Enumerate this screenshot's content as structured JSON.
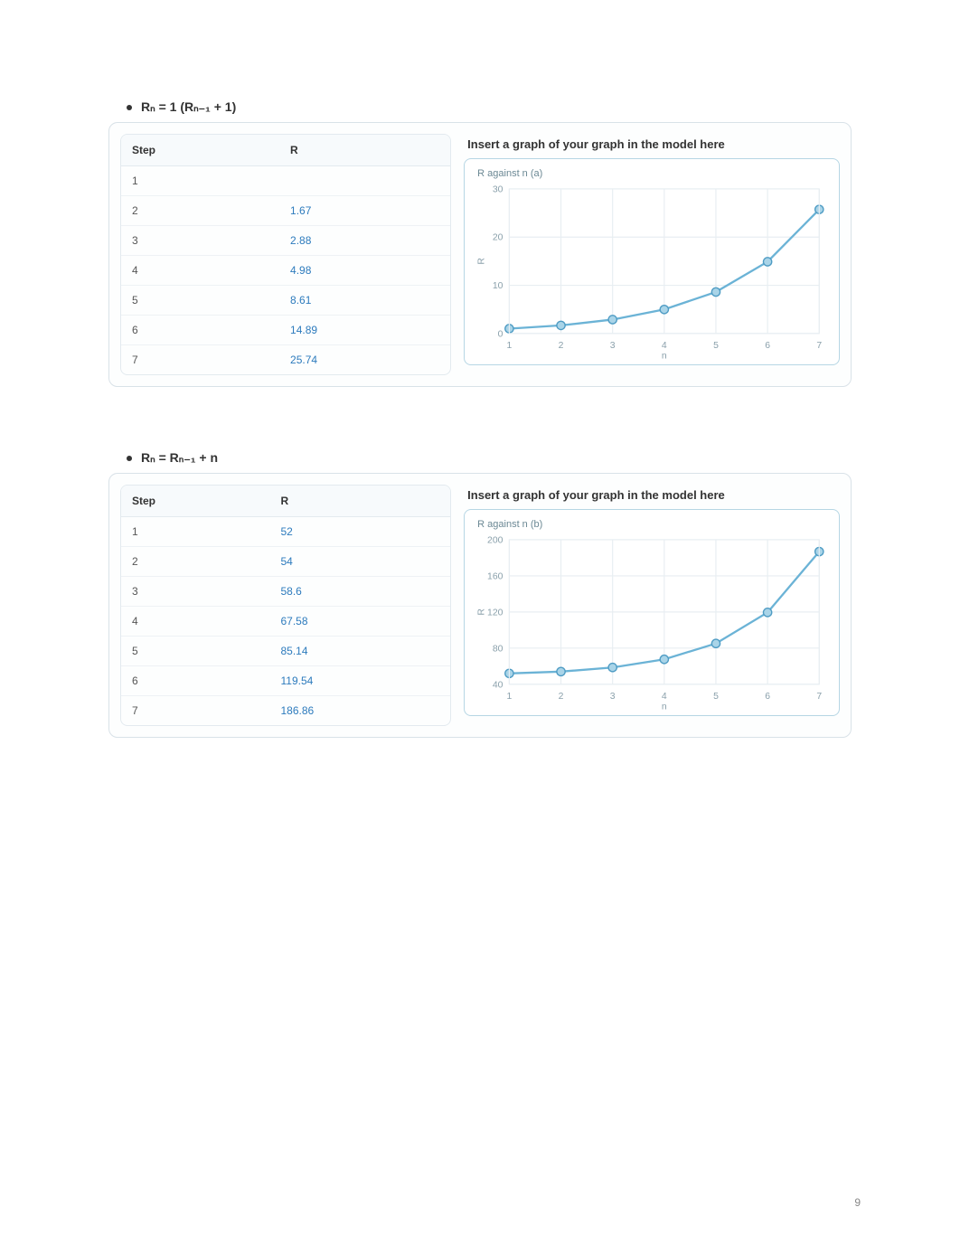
{
  "page_number": "9",
  "colors": {
    "panel_border": "#d9e2e8",
    "chart_border": "#b6d6e4",
    "line": "#6bb3d6",
    "marker_fill": "#a9d4e8",
    "marker_stroke": "#4f9cc4",
    "grid": "#e8eef2",
    "axis_text": "#8aa0ab",
    "link": "#2d7bbd"
  },
  "sections": [
    {
      "heading": "Rₙ = 1 (Rₙ₋₁ + 1)",
      "table": {
        "headers": [
          "Step",
          "R"
        ],
        "rows": [
          [
            "1",
            ""
          ],
          [
            "2",
            "1.67"
          ],
          [
            "3",
            "2.88"
          ],
          [
            "4",
            "4.98"
          ],
          [
            "5",
            "8.61"
          ],
          [
            "6",
            "14.89"
          ],
          [
            "7",
            "25.74"
          ]
        ],
        "link_from_row_index": 1
      },
      "chart": {
        "title": "Insert a graph of your graph in the model here",
        "subtitle": "R against n (a)",
        "type": "line",
        "x_label": "n",
        "y_label": "R",
        "xlim": [
          1,
          7
        ],
        "ylim": [
          0,
          30
        ],
        "xticks": [
          1,
          2,
          3,
          4,
          5,
          6,
          7
        ],
        "yticks": [
          0,
          10,
          20,
          30
        ],
        "points": [
          {
            "x": 1,
            "y": 1.0
          },
          {
            "x": 2,
            "y": 1.67
          },
          {
            "x": 3,
            "y": 2.88
          },
          {
            "x": 4,
            "y": 4.98
          },
          {
            "x": 5,
            "y": 8.61
          },
          {
            "x": 6,
            "y": 14.89
          },
          {
            "x": 7,
            "y": 25.74
          }
        ],
        "line_color": "#6bb3d6",
        "marker_fill": "#a9d4e8",
        "marker_stroke": "#4f9cc4",
        "marker_radius": 4,
        "line_width": 2,
        "grid_color": "#e8eef2",
        "bg": "#ffffff",
        "axis_fontsize": 9
      }
    },
    {
      "heading": "Rₙ = Rₙ₋₁ + n",
      "table": {
        "headers": [
          "Step",
          "R"
        ],
        "rows": [
          [
            "1",
            "52"
          ],
          [
            "2",
            "54"
          ],
          [
            "3",
            "58.6"
          ],
          [
            "4",
            "67.58"
          ],
          [
            "5",
            "85.14"
          ],
          [
            "6",
            "119.54"
          ],
          [
            "7",
            "186.86"
          ]
        ],
        "link_from_row_index": 0
      },
      "chart": {
        "title": "Insert a graph of your graph in the model here",
        "subtitle": "R against n (b)",
        "type": "line",
        "x_label": "n",
        "y_label": "R",
        "xlim": [
          1,
          7
        ],
        "ylim": [
          40,
          200
        ],
        "xticks": [
          1,
          2,
          3,
          4,
          5,
          6,
          7
        ],
        "yticks": [
          40,
          80,
          120,
          160,
          200
        ],
        "points": [
          {
            "x": 1,
            "y": 52
          },
          {
            "x": 2,
            "y": 54
          },
          {
            "x": 3,
            "y": 58.6
          },
          {
            "x": 4,
            "y": 67.58
          },
          {
            "x": 5,
            "y": 85.14
          },
          {
            "x": 6,
            "y": 119.54
          },
          {
            "x": 7,
            "y": 186.86
          }
        ],
        "line_color": "#6bb3d6",
        "marker_fill": "#a9d4e8",
        "marker_stroke": "#4f9cc4",
        "marker_radius": 4,
        "line_width": 2,
        "grid_color": "#e8eef2",
        "bg": "#ffffff",
        "axis_fontsize": 9
      }
    }
  ]
}
